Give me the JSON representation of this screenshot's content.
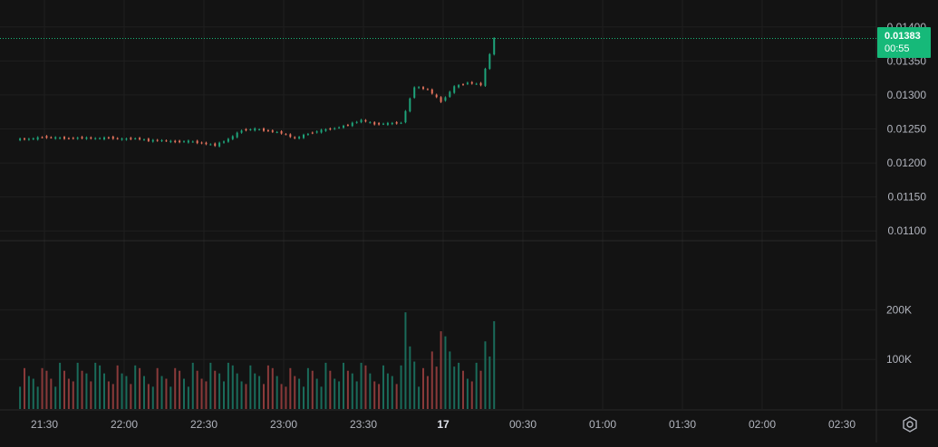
{
  "colors": {
    "background": "#131313",
    "grid": "#1f1f1f",
    "text": "#b2b5be",
    "up": "#1ea37a",
    "down": "#e4735d",
    "volume_up": "#1a6b5a",
    "volume_down": "#8a3a3a",
    "price_line": "#16b979"
  },
  "chart_data": [
    {
      "type": "candlestick",
      "price_axis_ticks": [
        "0.01400",
        "0.01350",
        "0.01300",
        "0.01250",
        "0.01200",
        "0.01150",
        "0.01100"
      ],
      "ylim": [
        0.01095,
        0.01405
      ],
      "last_price": "0.01383",
      "countdown": "00:55",
      "time_axis_ticks": [
        "21:30",
        "22:00",
        "22:30",
        "23:00",
        "23:30",
        "17",
        "00:30",
        "01:00",
        "01:30",
        "02:00",
        "02:30"
      ],
      "x_start": "21:20",
      "series": [
        {
          "time": "21:20",
          "close": 0.01235
        },
        {
          "time": "21:25",
          "close": 0.01238
        },
        {
          "time": "21:30",
          "close": 0.01237
        },
        {
          "time": "21:35",
          "close": 0.01236
        },
        {
          "time": "21:40",
          "close": 0.01237
        },
        {
          "time": "21:45",
          "close": 0.01236
        },
        {
          "time": "21:50",
          "close": 0.01237
        },
        {
          "time": "21:55",
          "close": 0.01235
        },
        {
          "time": "22:00",
          "close": 0.01236
        },
        {
          "time": "22:05",
          "close": 0.01233
        },
        {
          "time": "22:10",
          "close": 0.01233
        },
        {
          "time": "22:15",
          "close": 0.01231
        },
        {
          "time": "22:20",
          "close": 0.01232
        },
        {
          "time": "22:25",
          "close": 0.01229
        },
        {
          "time": "22:30",
          "close": 0.01226
        },
        {
          "time": "22:35",
          "close": 0.01235
        },
        {
          "time": "22:40",
          "close": 0.01248
        },
        {
          "time": "22:45",
          "close": 0.0125
        },
        {
          "time": "22:50",
          "close": 0.01247
        },
        {
          "time": "22:55",
          "close": 0.01244
        },
        {
          "time": "23:00",
          "close": 0.01236
        },
        {
          "time": "23:05",
          "close": 0.01243
        },
        {
          "time": "23:10",
          "close": 0.01248
        },
        {
          "time": "23:15",
          "close": 0.01251
        },
        {
          "time": "23:20",
          "close": 0.01256
        },
        {
          "time": "23:25",
          "close": 0.01263
        },
        {
          "time": "23:30",
          "close": 0.01257
        },
        {
          "time": "23:35",
          "close": 0.01258
        },
        {
          "time": "23:40",
          "close": 0.01259
        },
        {
          "time": "23:45",
          "close": 0.01312
        },
        {
          "time": "23:50",
          "close": 0.01308
        },
        {
          "time": "23:55",
          "close": 0.0129
        },
        {
          "time": "00:00",
          "close": 0.01312
        },
        {
          "time": "00:05",
          "close": 0.01318
        },
        {
          "time": "00:10",
          "close": 0.01315
        },
        {
          "time": "00:15",
          "close": 0.01383
        }
      ],
      "volume_axis_ticks": [
        "200K",
        "100K"
      ],
      "volume_ylim": [
        0,
        250000
      ],
      "volume_summary": {
        "typical": 75000,
        "peak": 195000,
        "peak_time": "23:45"
      }
    }
  ]
}
